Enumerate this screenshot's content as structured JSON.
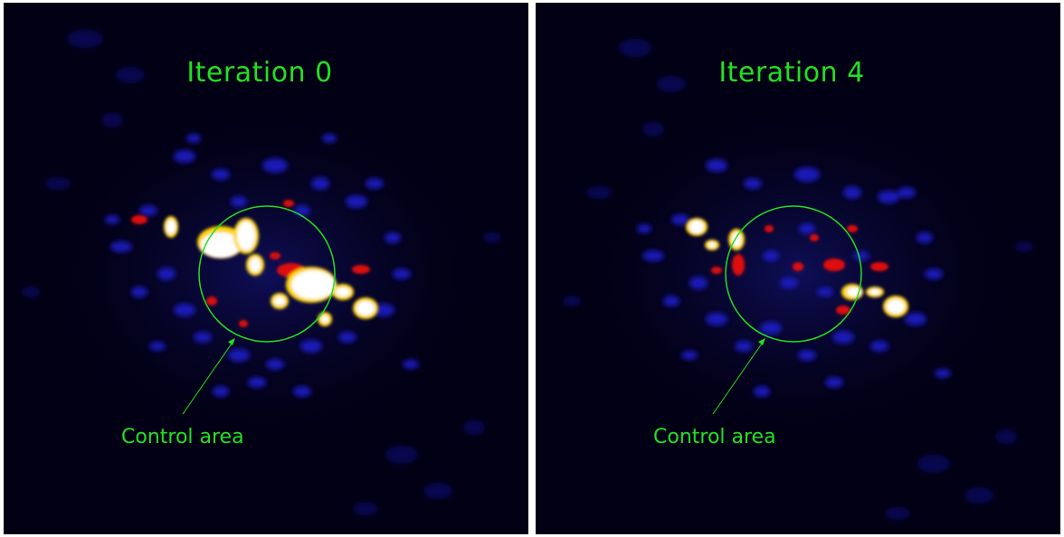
{
  "panels": [
    {
      "title": "Iteration 0",
      "annotation": "Control area"
    },
    {
      "title": "Iteration 4",
      "annotation": "Control area"
    }
  ],
  "colors": {
    "background": "#020014",
    "overlay_green": "#22e022",
    "speckle_blue": "#1a1cc8",
    "speckle_red": "#e01010",
    "speckle_yellow": "#ffd400",
    "speckle_white": "#ffffff"
  }
}
